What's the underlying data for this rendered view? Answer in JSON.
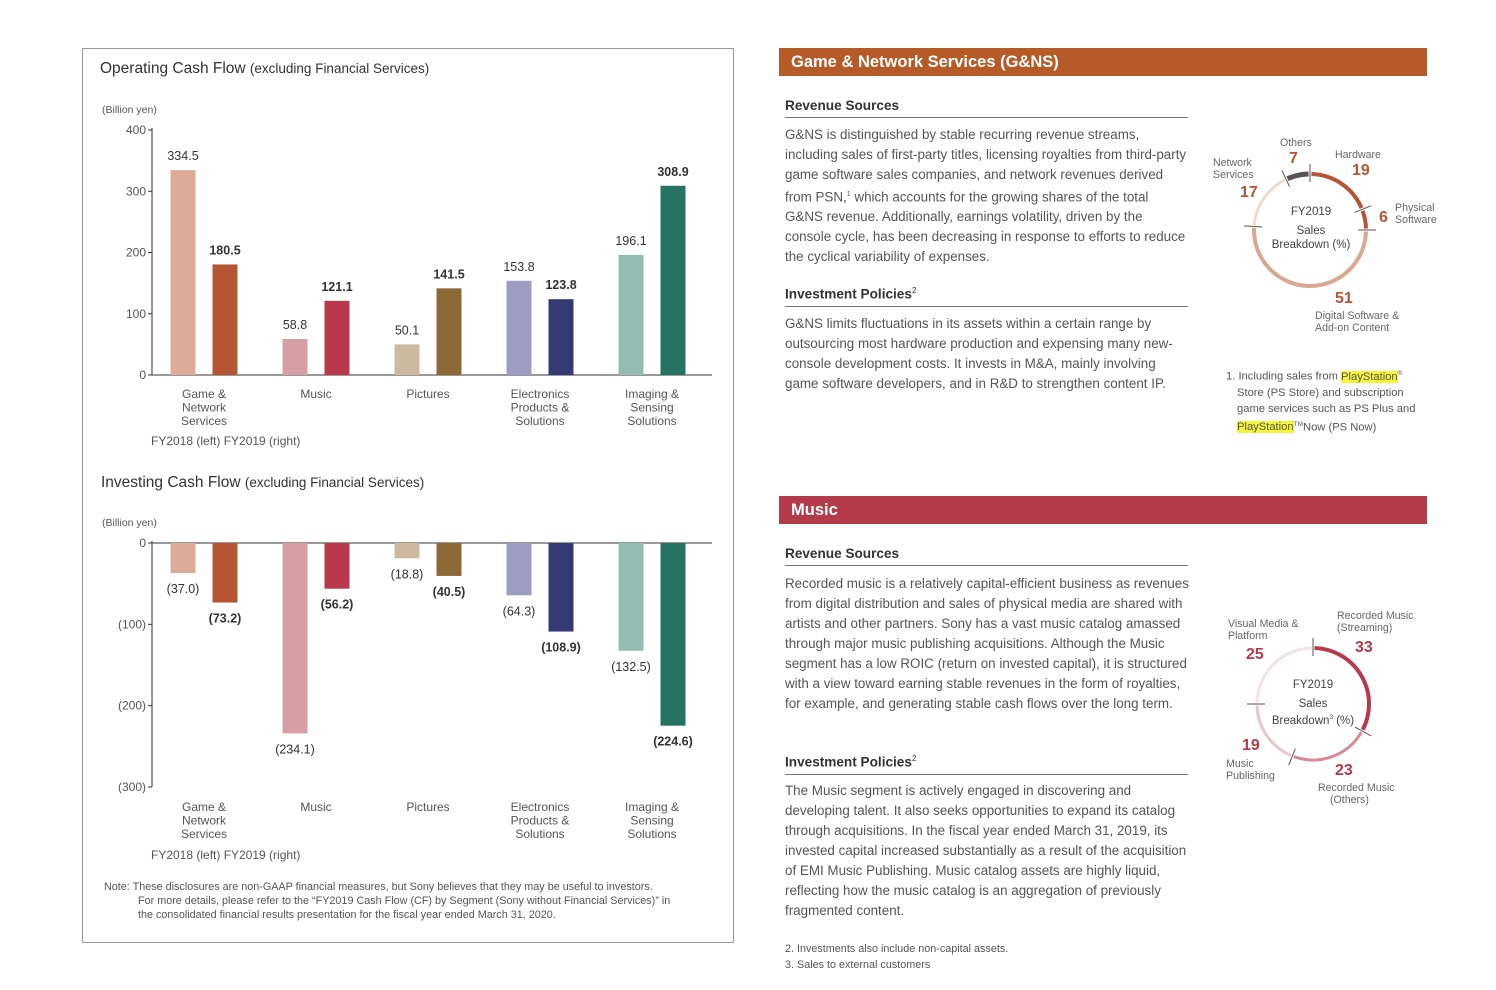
{
  "occf": {
    "title": "Operating Cash Flow",
    "subtitle": "(excluding Financial Services)",
    "unit": "(Billion yen)",
    "legend": "FY2018 (left)   FY2019 (right)"
  },
  "icf": {
    "title": "Investing Cash Flow",
    "subtitle": "(excluding Financial Services)",
    "unit": "(Billion yen)",
    "legend": "FY2018 (left)   FY2019 (right)"
  },
  "chart_data": [
    {
      "type": "bar",
      "title": "Operating Cash Flow (excluding Financial Services)",
      "ylabel": "(Billion yen)",
      "ylim": [
        0,
        400
      ],
      "yticks": [
        "0",
        "100",
        "200",
        "300",
        "400"
      ],
      "categories": [
        [
          "Game &",
          "Network",
          "Services"
        ],
        [
          "Music"
        ],
        [
          "Pictures"
        ],
        [
          "Electronics",
          "Products &",
          "Solutions"
        ],
        [
          "Imaging &",
          "Sensing",
          "Solutions"
        ]
      ],
      "series": [
        {
          "name": "FY2018 (left)",
          "values": [
            334.5,
            58.8,
            50.1,
            153.8,
            196.1
          ],
          "labels": [
            "334.5",
            "58.8",
            "50.1",
            "153.8",
            "196.1"
          ],
          "colors": [
            "#dcac98",
            "#d79ea5",
            "#ccb9a0",
            "#9d9dc2",
            "#93bdb2"
          ]
        },
        {
          "name": "FY2019 (right)",
          "values": [
            180.5,
            121.1,
            141.5,
            123.8,
            308.9
          ],
          "labels": [
            "180.5",
            "121.1",
            "141.5",
            "123.8",
            "308.9"
          ],
          "colors": [
            "#b65533",
            "#b8394b",
            "#8b6a36",
            "#353a74",
            "#267362"
          ]
        }
      ],
      "legend": "bottom-left"
    },
    {
      "type": "bar",
      "title": "Investing Cash Flow (excluding Financial Services)",
      "ylabel": "(Billion yen)",
      "ylim": [
        -300,
        0
      ],
      "yticks": [
        "0",
        "(100)",
        "(200)",
        "(300)"
      ],
      "categories": [
        [
          "Game &",
          "Network",
          "Services"
        ],
        [
          "Music"
        ],
        [
          "Pictures"
        ],
        [
          "Electronics",
          "Products &",
          "Solutions"
        ],
        [
          "Imaging &",
          "Sensing",
          "Solutions"
        ]
      ],
      "series": [
        {
          "name": "FY2018 (left)",
          "values": [
            -37.0,
            -234.1,
            -18.8,
            -64.3,
            -132.5
          ],
          "labels": [
            "(37.0)",
            "(234.1)",
            "(18.8)",
            "(64.3)",
            "(132.5)"
          ],
          "colors": [
            "#dcac98",
            "#d79ea5",
            "#ccb9a0",
            "#9d9dc2",
            "#93bdb2"
          ]
        },
        {
          "name": "FY2019 (right)",
          "values": [
            -73.2,
            -56.2,
            -40.5,
            -108.9,
            -224.6
          ],
          "labels": [
            "(73.2)",
            "(56.2)",
            "(40.5)",
            "(108.9)",
            "(224.6)"
          ],
          "colors": [
            "#b65533",
            "#b8394b",
            "#8b6a36",
            "#353a74",
            "#267362"
          ]
        }
      ],
      "legend": "bottom-left"
    },
    {
      "type": "pie",
      "title": "FY2019 Sales Breakdown (%)",
      "labels": [
        "Hardware",
        "Physical Software",
        "Digital Software & Add-on Content",
        "Network Services",
        "Others"
      ],
      "values": [
        19,
        6,
        51,
        17,
        7
      ],
      "colors": [
        "#b65533",
        "#b65533",
        "#d9a98f",
        "#eedad0",
        "#555555"
      ]
    },
    {
      "type": "pie",
      "title": "FY2019 Sales Breakdown³ (%)",
      "labels": [
        "Recorded Music (Streaming)",
        "Recorded Music (Others)",
        "Music Publishing",
        "Visual Media & Platform"
      ],
      "values": [
        33,
        23,
        19,
        25
      ],
      "colors": [
        "#b8394b",
        "#d98a98",
        "#e9c5cc",
        "#f4e3e6"
      ]
    }
  ],
  "note": {
    "line1": "Note: These disclosures are non-GAAP financial measures, but Sony believes that they may be useful to investors.",
    "line2": "For more details, please refer to the “FY2019 Cash Flow (CF) by Segment (Sony without Financial Services)” in",
    "line3": "the consolidated financial results presentation for the fiscal year ended March 31, 2020."
  },
  "gns": {
    "header": "Game & Network Services (G&NS)",
    "header_color": "#b65a27",
    "rev_heading": "Revenue Sources",
    "rev_text_a": "G&NS is distinguished by stable recurring revenue streams, including sales of first-party titles, licensing royalties from third-party game software sales companies, and network revenues derived from PSN,",
    "rev_sup": "1",
    "rev_text_b": " which accounts for the growing shares of the total G&NS revenue. Additionally, earnings volatility, driven by the console cycle, has been decreasing in response to efforts to reduce the cyclical variability of expenses.",
    "inv_heading": "Investment Policies",
    "inv_sup": "2",
    "inv_text": "G&NS limits fluctuations in its assets within a certain range by outsourcing most hardware production and expensing many new-console development costs. It invests in M&A, mainly involving game software developers, and in R&D to strengthen content IP.",
    "donut": {
      "center_year": "FY2019",
      "center_l1": "Sales",
      "center_l2": "Breakdown (%)",
      "others_label": "Others",
      "others_val": "7",
      "hardware_label": "Hardware",
      "hardware_val": "19",
      "physical_label_1": "Physical",
      "physical_label_2": "Software",
      "physical_val": "6",
      "digital_val": "51",
      "digital_label_1": "Digital Software &",
      "digital_label_2": "Add-on Content",
      "network_label_1": "Network",
      "network_label_2": "Services",
      "network_val": "17"
    },
    "fn1_a": "1. Including sales from ",
    "fn1_ps": "PlayStation",
    "fn1_reg": "®",
    "fn1_b": "Store (PS Store) and subscription",
    "fn1_c": "game services such as PS Plus and",
    "fn1_ps2": "PlayStation",
    "fn1_tm": "TM",
    "fn1_d": "Now (PS Now)"
  },
  "music": {
    "header": "Music",
    "header_color": "#b33b4a",
    "rev_heading": "Revenue Sources",
    "rev_text": "Recorded music is a relatively capital-efficient business as revenues from digital distribution and sales of physical media are shared with artists and other partners. Sony has a vast music catalog amassed through major music publishing acquisitions. Although the Music segment has a low ROIC (return on invested capital), it is structured with a view toward earning stable revenues in the form of royalties, for example, and generating stable cash flows over the long term.",
    "inv_heading": "Investment Policies",
    "inv_sup": "2",
    "inv_text": "The Music segment is actively engaged in discovering and developing talent. It also seeks opportunities to expand its catalog through acquisitions. In the fiscal year ended March 31, 2019, its invested capital increased substantially as a result of the acquisition of EMI Music Publishing. Music catalog assets are highly liquid, reflecting how the music catalog is an aggregation of previously fragmented content.",
    "donut": {
      "center_year": "FY2019",
      "center_l1": "Sales",
      "center_l2a": "Breakdown",
      "center_sup": "3",
      "center_l2b": " (%)",
      "vm_label_1": "Visual Media &",
      "vm_label_2": "Platform",
      "vm_val": "25",
      "rms_label_1": "Recorded Music",
      "rms_label_2": "(Streaming)",
      "rms_val": "33",
      "pub_val": "19",
      "pub_label_1": "Music",
      "pub_label_2": "Publishing",
      "rmo_val": "23",
      "rmo_label_1": "Recorded Music",
      "rmo_label_2": "(Others)"
    },
    "fn2": "2. Investments also include non-capital assets.",
    "fn3": "3. Sales to external customers"
  }
}
